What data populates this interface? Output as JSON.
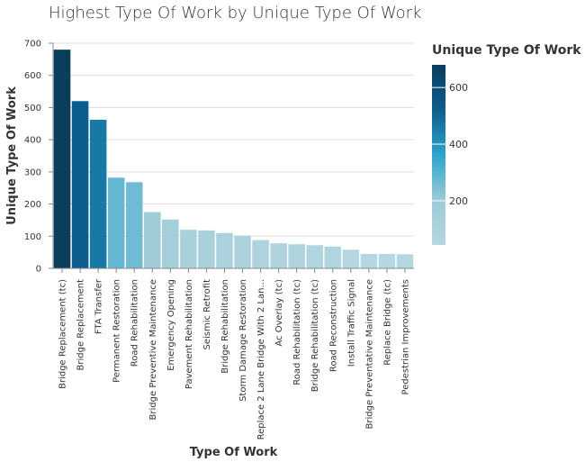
{
  "chart_data": {
    "type": "bar",
    "title": "Highest Type Of Work by Unique Type Of Work",
    "xlabel": "Type Of Work",
    "ylabel": "Unique Type Of Work",
    "ylim": [
      0,
      700
    ],
    "yticks": [
      0,
      100,
      200,
      300,
      400,
      500,
      600,
      700
    ],
    "grid": true,
    "categories": [
      "Bridge Replacement (tc)",
      "Bridge Replacement",
      "FTA Transfer",
      "Permanent Restoration",
      "Road Rehabilitation",
      "Bridge Preventive Maintenance",
      "Emergency Opening",
      "Pavement Rehabilitation",
      "Seismic Retrofit",
      "Bridge Rehabilitation",
      "Storm Damage Restoration",
      "Replace 2 Lane Bridge With 2 Lan...",
      "Ac Overlay (tc)",
      "Road Rehabilitation (tc)",
      "Bridge Rehabilitation (tc)",
      "Road Reconstruction",
      "Install Traffic Signal",
      "Bridge Preventative Maintenance",
      "Replace Bridge (tc)",
      "Pedestrian Improvements"
    ],
    "values": [
      680,
      520,
      462,
      282,
      268,
      175,
      152,
      120,
      118,
      110,
      102,
      88,
      78,
      75,
      72,
      68,
      58,
      45,
      45,
      44
    ],
    "legend": {
      "title": "Unique Type Of Work",
      "placement": "right",
      "ticks": [
        200,
        400,
        600
      ],
      "domain": [
        44,
        680
      ],
      "colors": [
        "#b5d7e0",
        "#9ccad6",
        "#2ba5cf",
        "#0d5e8e",
        "#0b3d5c"
      ]
    }
  }
}
